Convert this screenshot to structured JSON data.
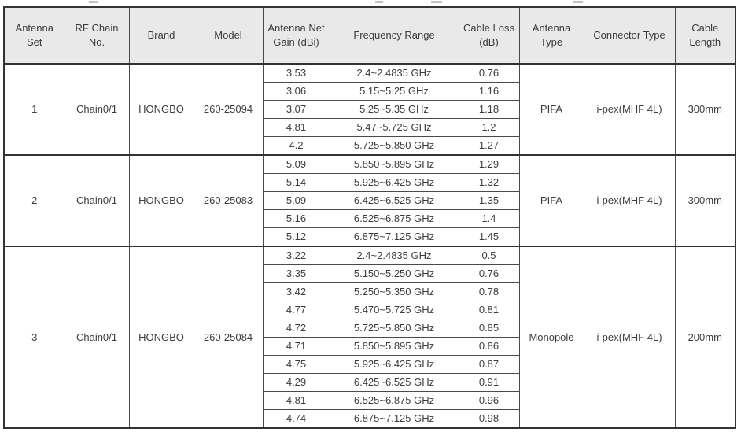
{
  "table": {
    "columns": [
      "Antenna Set",
      "RF Chain No.",
      "Brand",
      "Model",
      "Antenna Net Gain (dBi)",
      "Frequency Range",
      "Cable Loss (dB)",
      "Antenna Type",
      "Connector Type",
      "Cable Length"
    ],
    "sets": [
      {
        "antenna_set": "1",
        "rf_chain": "Chain0/1",
        "brand": "HONGBO",
        "model": "260-25094",
        "antenna_type": "PIFA",
        "connector_type": "i-pex(MHF 4L)",
        "cable_length": "300mm",
        "rows": [
          {
            "gain": "3.53",
            "freq": "2.4~2.4835 GHz",
            "loss": "0.76"
          },
          {
            "gain": "3.06",
            "freq": "5.15~5.25 GHz",
            "loss": "1.16"
          },
          {
            "gain": "3.07",
            "freq": "5.25~5.35 GHz",
            "loss": "1.18"
          },
          {
            "gain": "4.81",
            "freq": "5.47~5.725 GHz",
            "loss": "1.2"
          },
          {
            "gain": "4.2",
            "freq": "5.725~5.850 GHz",
            "loss": "1.27"
          }
        ]
      },
      {
        "antenna_set": "2",
        "rf_chain": "Chain0/1",
        "brand": "HONGBO",
        "model": "260-25083",
        "antenna_type": "PIFA",
        "connector_type": "i-pex(MHF 4L)",
        "cable_length": "300mm",
        "rows": [
          {
            "gain": "5.09",
            "freq": "5.850~5.895 GHz",
            "loss": "1.29"
          },
          {
            "gain": "5.14",
            "freq": "5.925~6.425 GHz",
            "loss": "1.32"
          },
          {
            "gain": "5.09",
            "freq": "6.425~6.525 GHz",
            "loss": "1.35"
          },
          {
            "gain": "5.16",
            "freq": "6.525~6.875 GHz",
            "loss": "1.4"
          },
          {
            "gain": "5.12",
            "freq": "6.875~7.125 GHz",
            "loss": "1.45"
          }
        ]
      },
      {
        "antenna_set": "3",
        "rf_chain": "Chain0/1",
        "brand": "HONGBO",
        "model": "260-25084",
        "antenna_type": "Monopole",
        "connector_type": "i-pex(MHF 4L)",
        "cable_length": "200mm",
        "rows": [
          {
            "gain": "3.22",
            "freq": "2.4~2.4835 GHz",
            "loss": "0.5"
          },
          {
            "gain": "3.35",
            "freq": "5.150~5.250 GHz",
            "loss": "0.76"
          },
          {
            "gain": "3.42",
            "freq": "5.250~5.350 GHz",
            "loss": "0.78"
          },
          {
            "gain": "4.77",
            "freq": "5.470~5.725 GHz",
            "loss": "0.81"
          },
          {
            "gain": "4.72",
            "freq": "5.725~5.850 GHz",
            "loss": "0.85"
          },
          {
            "gain": "4.71",
            "freq": "5.850~5.895 GHz",
            "loss": "0.86"
          },
          {
            "gain": "4.75",
            "freq": "5.925~6.425 GHz",
            "loss": "0.87"
          },
          {
            "gain": "4.29",
            "freq": "6.425~6.525 GHz",
            "loss": "0.91"
          },
          {
            "gain": "4.81",
            "freq": "6.525~6.875 GHz",
            "loss": "0.96"
          },
          {
            "gain": "4.74",
            "freq": "6.875~7.125 GHz",
            "loss": "0.98"
          }
        ]
      }
    ],
    "colors": {
      "header_bg": "#e9e9e9",
      "grid_line": "#4a4a4a",
      "heavy_line": "#333333",
      "text": "#3c3c3c"
    }
  }
}
